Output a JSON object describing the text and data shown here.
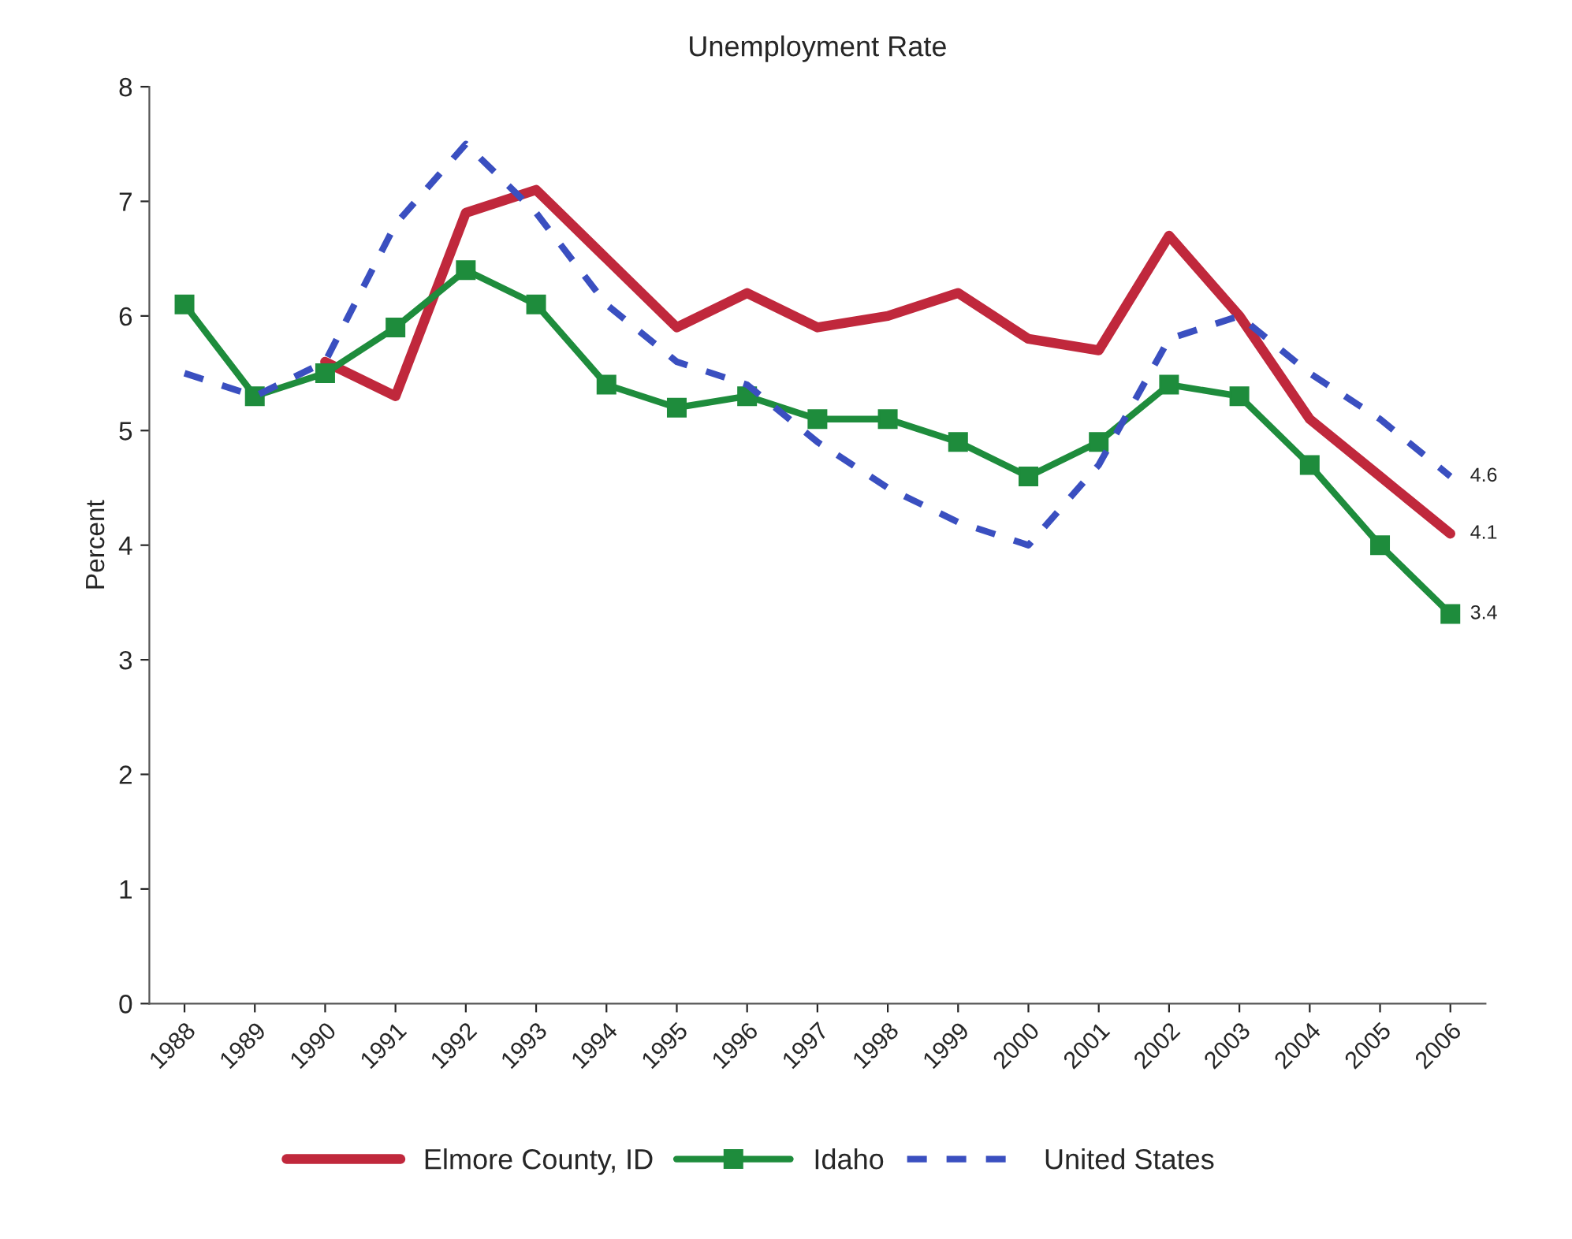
{
  "chart_data": {
    "type": "line",
    "title": "Unemployment Rate",
    "ylabel": "Percent",
    "categories": [
      "1988",
      "1989",
      "1990",
      "1991",
      "1992",
      "1993",
      "1994",
      "1995",
      "1996",
      "1997",
      "1998",
      "1999",
      "2000",
      "2001",
      "2002",
      "2003",
      "2004",
      "2005",
      "2006"
    ],
    "series": [
      {
        "name": "Elmore County, ID",
        "color": "#c0283c",
        "marker": "none",
        "line_style": "solid",
        "values": [
          null,
          null,
          5.6,
          5.3,
          6.9,
          7.1,
          6.5,
          5.9,
          6.2,
          5.9,
          6.0,
          6.2,
          5.8,
          5.7,
          6.7,
          6.0,
          5.1,
          4.6,
          4.1
        ],
        "value_labels": [
          null,
          null,
          null,
          null,
          null,
          null,
          null,
          null,
          null,
          null,
          null,
          null,
          null,
          null,
          null,
          null,
          null,
          null,
          "4.1"
        ]
      },
      {
        "name": "Idaho",
        "color": "#1e8c3c",
        "marker": "square",
        "line_style": "solid",
        "values": [
          6.1,
          5.3,
          5.5,
          5.9,
          6.4,
          6.1,
          5.4,
          5.2,
          5.3,
          5.1,
          5.1,
          4.9,
          4.6,
          4.9,
          5.4,
          5.3,
          4.7,
          4.0,
          3.4
        ],
        "value_labels": [
          null,
          null,
          null,
          null,
          null,
          null,
          null,
          null,
          null,
          null,
          null,
          null,
          null,
          null,
          null,
          null,
          null,
          null,
          "3.4"
        ]
      },
      {
        "name": "United States",
        "color": "#3a4fc0",
        "marker": "none",
        "line_style": "dashed",
        "values": [
          5.5,
          5.3,
          5.6,
          6.8,
          7.5,
          6.9,
          6.1,
          5.6,
          5.4,
          4.9,
          4.5,
          4.2,
          4.0,
          4.7,
          5.8,
          6.0,
          5.5,
          5.1,
          4.6
        ],
        "value_labels": [
          null,
          null,
          null,
          null,
          null,
          null,
          null,
          null,
          null,
          null,
          null,
          null,
          null,
          null,
          null,
          null,
          null,
          null,
          "4.6"
        ]
      }
    ],
    "ylim": [
      0,
      8
    ],
    "yticks": [
      0,
      1,
      2,
      3,
      4,
      5,
      6,
      7,
      8
    ],
    "grid": false,
    "legend": "bottom"
  }
}
